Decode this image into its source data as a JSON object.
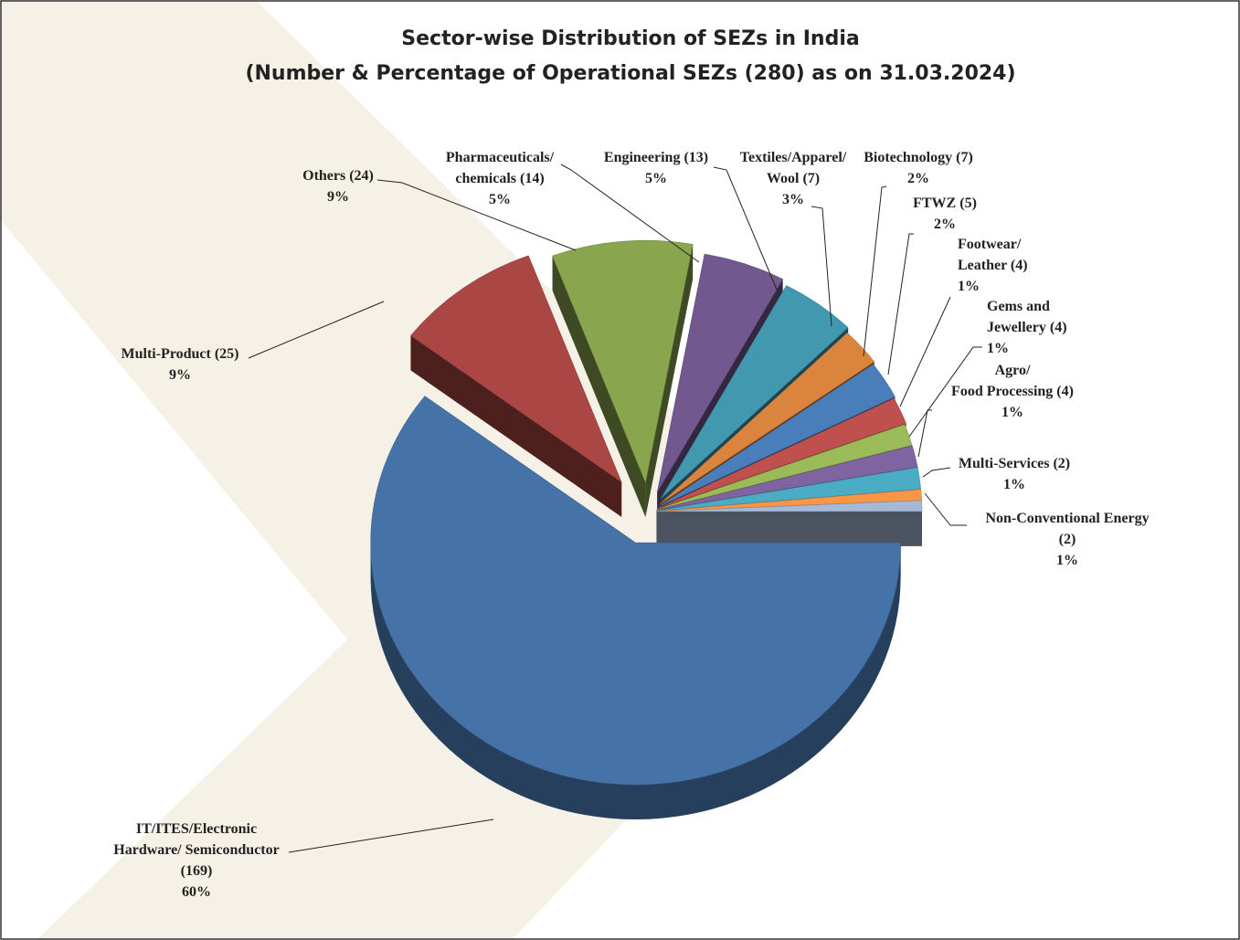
{
  "chart_data": {
    "type": "pie",
    "title": "Sector-wise Distribution of SEZs in India",
    "subtitle": "(Number & Percentage of Operational SEZs (280) as on 31.03.2024)",
    "categories": [
      "IT/ITES/Electronic\nHardware/ Semiconductor",
      "Multi-Product",
      "Others",
      "Pharmaceuticals/\nchemicals",
      "Engineering",
      "Textiles/Apparel/\nWool",
      "Biotechnology",
      "FTWZ",
      "Footwear/\nLeather",
      "Gems and\nJewellery",
      "Agro/\nFood Processing",
      "Multi-Services",
      "Non-Conventional Energy"
    ],
    "values": [
      169,
      25,
      24,
      14,
      13,
      7,
      7,
      5,
      4,
      4,
      4,
      2,
      2
    ],
    "value_labels": [
      "(169)",
      "(25)",
      "(24)",
      "(14)",
      "(13)",
      "(7)",
      "(7)",
      "(5)",
      "(4)",
      "(4)",
      "(4)",
      "(2)",
      "(2)"
    ],
    "percent_labels": [
      "60%",
      "9%",
      "9%",
      "5%",
      "5%",
      "3%",
      "2%",
      "2%",
      "1%",
      "1%",
      "1%",
      "1%",
      "1%"
    ],
    "colors": [
      "#4572a7",
      "#aa4643",
      "#89a54e",
      "#71588f",
      "#4198af",
      "#db843d",
      "#4a7ebb",
      "#c0504d",
      "#9bbb59",
      "#8064a2",
      "#4bacc6",
      "#f79646",
      "#a6b9d8"
    ]
  }
}
